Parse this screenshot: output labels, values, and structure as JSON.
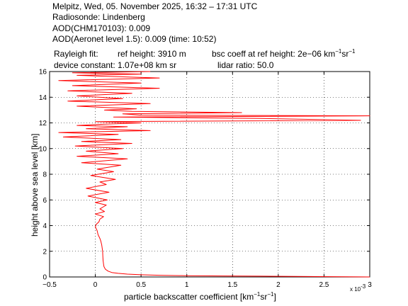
{
  "header": {
    "line1": "Melpitz, Wed, 05. November 2025, 16:32 – 17:31 UTC",
    "line2": "Radiosonde: Lindenberg",
    "line3": "AOD(CHM170103): 0.009",
    "line4": "AOD(Aeronet level 1.5): 0.009   (time: 10:52)",
    "rayleigh_label": "Rayleigh fit:",
    "ref_height": "ref height: 3910 m",
    "bsc_coeff_prefix": "bsc coeff at ref height: 2e−06 km",
    "device_constant": "device constant: 1.07e+08 km sr",
    "lidar_ratio": "lidar ratio: 50.0"
  },
  "units": {
    "km": "km",
    "sr": "sr",
    "neg_one": "−1"
  },
  "chart_data": {
    "type": "line",
    "title": "",
    "xlabel_prefix": "particle backscatter coefficient [km",
    "xlabel_mid": "sr",
    "xlabel_suffix": "]",
    "ylabel": "height above sea level [km]",
    "x_exponent_prefix": "x 10",
    "x_exponent_power": "-3",
    "xlim": [
      -0.5,
      3.0
    ],
    "ylim": [
      0,
      16
    ],
    "x_unit_scale": 0.001,
    "xticks": [
      -0.5,
      0,
      0.5,
      1,
      1.5,
      2,
      2.5,
      3
    ],
    "xtick_labels": [
      "−0.5",
      "0",
      "0.5",
      "1",
      "1.5",
      "2",
      "2.5",
      "3"
    ],
    "yticks": [
      0,
      2,
      4,
      6,
      8,
      10,
      12,
      14,
      16
    ],
    "ytick_labels": [
      "0",
      "2",
      "4",
      "6",
      "8",
      "10",
      "12",
      "14",
      "16"
    ],
    "grid": true,
    "line_color": "#ff0000",
    "series": [
      {
        "x": [
          3.0,
          2.6,
          2.2,
          1.8,
          1.4,
          1.0,
          0.7,
          0.5,
          0.35,
          0.25,
          0.18,
          0.14,
          0.11,
          0.095,
          0.09,
          0.085,
          0.082,
          0.08,
          0.07,
          0.06,
          0.05,
          0.03,
          0.02,
          0.0,
          0.01,
          0.04,
          0.05,
          0.09,
          0.0,
          0.1,
          0.05,
          0.12,
          0.0,
          0.13,
          -0.08,
          0.15,
          -0.1,
          0.12,
          0.05,
          0.22,
          -0.05,
          0.2,
          0.02,
          0.28,
          -0.15,
          0.35,
          -0.2,
          0.25,
          -0.1,
          0.3,
          -0.22,
          0.4,
          -0.15,
          0.28,
          -0.35,
          0.25,
          -0.4,
          0.6,
          -0.1,
          0.35,
          -0.2,
          0.1,
          0.5,
          0.0,
          2.9,
          1.8,
          0.2,
          3.0,
          0.5,
          0.3,
          1.6,
          0.4,
          0.1,
          0.45,
          -0.2,
          0.6,
          -0.3,
          0.3,
          -0.2,
          0.4,
          -0.3,
          0.7,
          -0.25,
          0.5,
          -0.4,
          0.7,
          -0.2,
          0.5,
          -0.25,
          0.6
        ],
        "y": [
          0.0,
          0.02,
          0.04,
          0.06,
          0.08,
          0.1,
          0.13,
          0.17,
          0.22,
          0.28,
          0.35,
          0.45,
          0.6,
          0.8,
          1.0,
          1.3,
          1.6,
          2.0,
          2.5,
          2.8,
          3.0,
          3.3,
          3.6,
          3.9,
          4.1,
          4.3,
          4.5,
          4.7,
          4.9,
          5.1,
          5.3,
          5.6,
          5.8,
          6.0,
          6.3,
          6.6,
          6.9,
          7.2,
          7.4,
          7.6,
          7.9,
          8.2,
          8.4,
          8.7,
          8.9,
          9.2,
          9.4,
          9.6,
          9.8,
          10.0,
          10.2,
          10.4,
          10.55,
          10.7,
          10.9,
          11.1,
          11.25,
          11.4,
          11.55,
          11.7,
          11.8,
          11.9,
          12.0,
          12.1,
          12.2,
          12.35,
          12.45,
          12.55,
          12.6,
          12.7,
          12.8,
          12.9,
          13.0,
          13.1,
          13.3,
          13.5,
          13.7,
          13.9,
          14.1,
          14.3,
          14.5,
          14.7,
          14.9,
          15.1,
          15.3,
          15.5,
          15.7,
          15.8,
          15.9,
          16.0
        ]
      }
    ]
  }
}
